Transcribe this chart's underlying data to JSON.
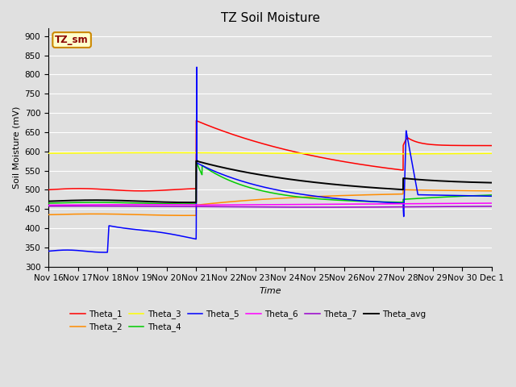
{
  "title": "TZ Soil Moisture",
  "ylabel": "Soil Moisture (mV)",
  "xlabel": "Time",
  "legend_label": "TZ_sm",
  "series_colors": {
    "Theta_1": "#ff0000",
    "Theta_2": "#ff8c00",
    "Theta_3": "#ffff00",
    "Theta_4": "#00cc00",
    "Theta_5": "#0000ff",
    "Theta_6": "#ff00ff",
    "Theta_7": "#9900cc",
    "Theta_avg": "#000000"
  },
  "ylim": [
    300,
    920
  ],
  "yticks": [
    300,
    350,
    400,
    450,
    500,
    550,
    600,
    650,
    700,
    750,
    800,
    850,
    900
  ],
  "tick_labels": [
    "Nov 16",
    "Nov 17",
    "Nov 18",
    "Nov 19",
    "Nov 20",
    "Nov 21",
    "Nov 22",
    "Nov 23",
    "Nov 24",
    "Nov 25",
    "Nov 26",
    "Nov 27",
    "Nov 28",
    "Nov 29",
    "Nov 30",
    "Dec 1"
  ],
  "bg_color": "#e0e0e0",
  "axes_bg_color": "#e0e0e0",
  "grid_color": "#ffffff",
  "title_fontsize": 11,
  "label_fontsize": 8,
  "tick_fontsize": 7.5
}
